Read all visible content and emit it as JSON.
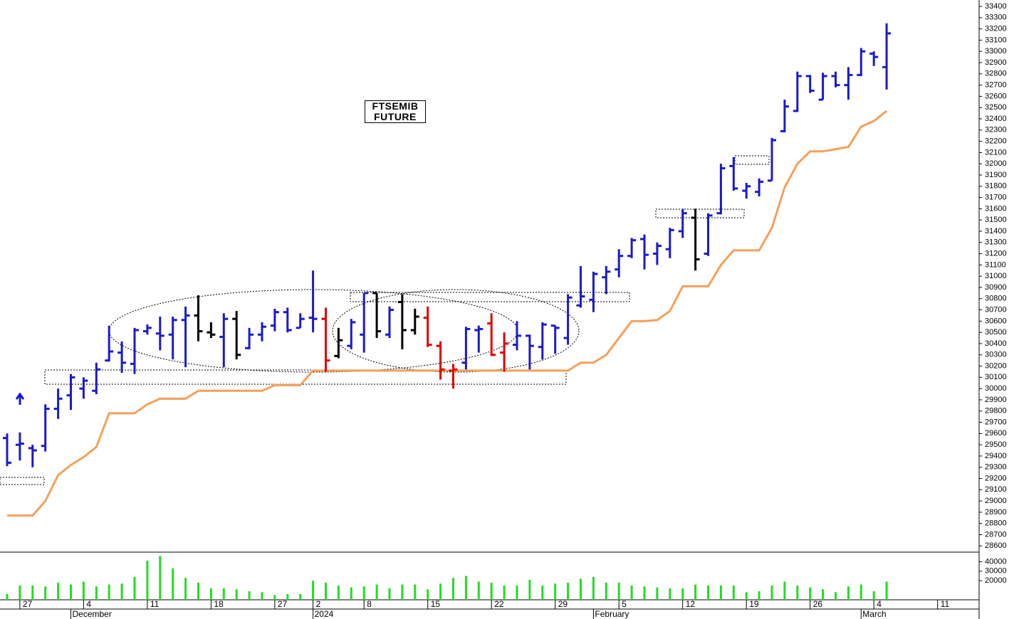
{
  "chart_data": {
    "type": "ohlc",
    "title": "FTSEMIB FUTURE",
    "categories": [
      null,
      "27",
      null,
      null,
      null,
      null,
      "4",
      null,
      null,
      null,
      null,
      "11",
      null,
      null,
      null,
      null,
      "18",
      null,
      null,
      null,
      null,
      "27",
      null,
      null,
      "2",
      null,
      null,
      null,
      "8",
      null,
      null,
      null,
      null,
      "15",
      null,
      null,
      null,
      null,
      "22",
      null,
      null,
      null,
      null,
      "29",
      null,
      null,
      null,
      null,
      "5",
      null,
      null,
      null,
      null,
      "12",
      null,
      null,
      null,
      null,
      "19",
      null,
      null,
      null,
      null,
      "26",
      null,
      null,
      null,
      null,
      "4",
      null,
      null,
      null,
      null,
      "11",
      null,
      null,
      null
    ],
    "months": [
      null,
      null,
      null,
      null,
      null,
      "December",
      null,
      null,
      null,
      null,
      null,
      null,
      null,
      null,
      null,
      null,
      null,
      null,
      null,
      null,
      null,
      null,
      null,
      null,
      "2024",
      null,
      null,
      null,
      null,
      null,
      null,
      null,
      null,
      null,
      null,
      null,
      null,
      null,
      null,
      null,
      null,
      null,
      null,
      null,
      null,
      null,
      "February",
      null,
      null,
      null,
      null,
      null,
      null,
      null,
      null,
      null,
      null,
      null,
      null,
      null,
      null,
      null,
      null,
      null,
      null,
      null,
      null,
      "March",
      null,
      null,
      null,
      null,
      null,
      null,
      null,
      null,
      null
    ],
    "open": [
      29560,
      29500,
      29470,
      29490,
      29820,
      29940,
      30000,
      29980,
      30250,
      30320,
      30220,
      30510,
      30490,
      30480,
      30610,
      30650,
      30500,
      30460,
      30620,
      30360,
      30480,
      30560,
      30680,
      30540,
      30630,
      30620,
      30290,
      30380,
      30480,
      30850,
      30480,
      30770,
      30520,
      30630,
      30380,
      30160,
      30230,
      30520,
      30580,
      30320,
      30390,
      30470,
      30370,
      30560,
      30450,
      30740,
      30790,
      30990,
      31060,
      31180,
      31330,
      31200,
      31240,
      31400,
      31520,
      31200,
      31560,
      31980,
      31760,
      31750,
      31850,
      32290,
      32470,
      32780,
      32570,
      32780,
      32700,
      32790,
      32980,
      32860,
      null,
      null,
      null,
      null,
      null,
      null,
      null
    ],
    "high": [
      29600,
      29610,
      29500,
      29860,
      30000,
      30130,
      30100,
      30230,
      30560,
      30420,
      30540,
      30570,
      30640,
      30640,
      30730,
      30830,
      30590,
      30670,
      30690,
      30540,
      30590,
      30710,
      30720,
      30670,
      31050,
      30720,
      30540,
      30620,
      30850,
      30850,
      30730,
      30840,
      30710,
      30730,
      30420,
      30220,
      30550,
      30560,
      30670,
      30500,
      30600,
      30480,
      30590,
      30560,
      30840,
      31090,
      31040,
      31090,
      31240,
      31340,
      31370,
      31300,
      31430,
      31600,
      31600,
      31560,
      32000,
      32060,
      31830,
      31870,
      32230,
      32570,
      32820,
      32790,
      32810,
      32820,
      32860,
      33030,
      33000,
      33250,
      null,
      null,
      null,
      null,
      null,
      null,
      null
    ],
    "low": [
      29310,
      29360,
      29300,
      29440,
      29730,
      29810,
      29910,
      29950,
      30240,
      30140,
      30130,
      30480,
      30340,
      30260,
      30190,
      30420,
      30450,
      30190,
      30260,
      30350,
      30420,
      30510,
      30500,
      30540,
      30500,
      30150,
      30270,
      30350,
      30320,
      30450,
      30450,
      30350,
      30480,
      30370,
      30080,
      30000,
      30170,
      30320,
      30290,
      30150,
      30340,
      30170,
      30260,
      30310,
      30390,
      30720,
      30680,
      30840,
      30990,
      31160,
      31060,
      31100,
      31160,
      31340,
      31050,
      31180,
      31550,
      31760,
      31690,
      31710,
      31850,
      32280,
      32460,
      32630,
      32570,
      32680,
      32570,
      32780,
      32870,
      32660,
      null,
      null,
      null,
      null,
      null,
      null,
      null
    ],
    "close": [
      29340,
      29510,
      29450,
      29820,
      29910,
      30100,
      30070,
      30170,
      30330,
      30230,
      30520,
      30540,
      30470,
      30610,
      30650,
      30510,
      30480,
      30620,
      30300,
      30480,
      30550,
      30680,
      30520,
      30620,
      30620,
      30250,
      30430,
      30590,
      30850,
      30510,
      30700,
      30520,
      30640,
      30390,
      30170,
      30170,
      30530,
      30530,
      30300,
      30400,
      30470,
      30380,
      30570,
      30540,
      30810,
      30820,
      31020,
      31040,
      31180,
      31320,
      31190,
      31270,
      31410,
      31560,
      31150,
      31540,
      31960,
      31780,
      31800,
      31840,
      32210,
      32510,
      32780,
      32650,
      32780,
      32700,
      32790,
      33000,
      32950,
      33160,
      null,
      null,
      null,
      null,
      null,
      null,
      null
    ],
    "bar_colors": [
      "#1a1acd",
      "#1a1acd",
      "#1a1acd",
      "#1a1acd",
      "#1a1acd",
      "#1a1acd",
      "#1a1acd",
      "#1a1acd",
      "#1a1acd",
      "#1a1acd",
      "#1a1acd",
      "#1a1acd",
      "#1a1acd",
      "#1a1acd",
      "#1a1acd",
      "#000000",
      "#000000",
      "#1a1acd",
      "#000000",
      "#1a1acd",
      "#1a1acd",
      "#1a1acd",
      "#1a1acd",
      "#1a1acd",
      "#1a1acd",
      "#e00000",
      "#000000",
      "#1a1acd",
      "#1a1acd",
      "#000000",
      "#1a1acd",
      "#000000",
      "#000000",
      "#e00000",
      "#e00000",
      "#e00000",
      "#1a1acd",
      "#1a1acd",
      "#e00000",
      "#e00000",
      "#1a1acd",
      "#1a1acd",
      "#1a1acd",
      "#1a1acd",
      "#1a1acd",
      "#1a1acd",
      "#1a1acd",
      "#1a1acd",
      "#1a1acd",
      "#1a1acd",
      "#1a1acd",
      "#1a1acd",
      "#1a1acd",
      "#1a1acd",
      "#000000",
      "#1a1acd",
      "#1a1acd",
      "#1a1acd",
      "#1a1acd",
      "#1a1acd",
      "#1a1acd",
      "#1a1acd",
      "#1a1acd",
      "#1a1acd",
      "#1a1acd",
      "#1a1acd",
      "#1a1acd",
      "#1a1acd",
      "#1a1acd",
      "#1a1acd",
      null,
      null,
      null,
      null,
      null,
      null,
      null
    ],
    "trail": {
      "color": "#f5a05a",
      "values": [
        28870,
        28870,
        28870,
        29000,
        29230,
        29320,
        29390,
        29480,
        29780,
        29780,
        29780,
        29860,
        29910,
        29910,
        29910,
        29980,
        29980,
        29980,
        29980,
        29980,
        29980,
        30030,
        30030,
        30030,
        30160,
        30160,
        30160,
        30160,
        30160,
        30160,
        30160,
        30160,
        30160,
        30160,
        30160,
        30160,
        30160,
        30160,
        30160,
        30160,
        30160,
        30160,
        30160,
        30160,
        30160,
        30230,
        30230,
        30300,
        30450,
        30600,
        30600,
        30610,
        30690,
        30910,
        30910,
        30910,
        31100,
        31230,
        31230,
        31230,
        31430,
        31790,
        32000,
        32110,
        32110,
        32130,
        32150,
        32330,
        32380,
        32470,
        null,
        null,
        null,
        null,
        null,
        null,
        null
      ]
    },
    "volume": {
      "color": "#22dd22",
      "values": [
        6000,
        15000,
        15000,
        14000,
        18000,
        16000,
        19000,
        14000,
        16000,
        17000,
        24000,
        41000,
        46000,
        33000,
        23000,
        18000,
        12000,
        12000,
        11000,
        9000,
        8000,
        5000,
        6000,
        6000,
        20000,
        18000,
        15000,
        13000,
        14000,
        16000,
        12000,
        16000,
        16000,
        11000,
        17000,
        23000,
        25000,
        19000,
        18000,
        15000,
        15000,
        21000,
        15000,
        17000,
        18000,
        22000,
        24000,
        18000,
        18000,
        15000,
        14000,
        13000,
        12000,
        12000,
        16000,
        15000,
        15000,
        15000,
        8000,
        9000,
        15000,
        19000,
        15000,
        13000,
        11000,
        8000,
        14000,
        16000,
        9000,
        19000,
        null,
        null,
        null,
        null,
        null,
        null,
        null
      ],
      "ylim": [
        0,
        50000
      ],
      "yticks": [
        20000,
        30000,
        40000
      ]
    },
    "ylim": [
      28545,
      33457
    ],
    "yticks": [
      28600,
      28700,
      28800,
      28900,
      29000,
      29100,
      29200,
      29300,
      29400,
      29500,
      29600,
      29700,
      29800,
      29900,
      30000,
      30100,
      30200,
      30300,
      30400,
      30500,
      30600,
      30700,
      30800,
      30900,
      31000,
      31100,
      31200,
      31300,
      31400,
      31500,
      31600,
      31700,
      31800,
      31900,
      32000,
      32100,
      32200,
      32300,
      32400,
      32500,
      32600,
      32700,
      32800,
      32900,
      33000,
      33100,
      33200,
      33300,
      33400
    ]
  }
}
